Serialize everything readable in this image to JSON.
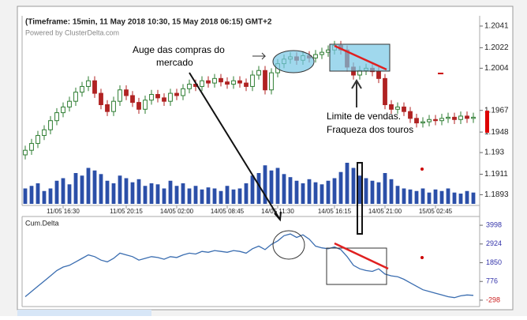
{
  "chart_data": [
    {
      "type": "candlestick",
      "title": "(Timeframe: 15min, 11 May 2018 10:30, 15 May 2018 06:15) GMT+2",
      "subtitle": "Powered by ClusterDelta.com",
      "annotations": [
        "Auge das compras do",
        "mercado",
        "Limite de vendas.",
        "Fraqueza dos touros"
      ],
      "categories": [
        null,
        null,
        null,
        null,
        null,
        null,
        "11/05 16:30",
        null,
        null,
        null,
        null,
        null,
        null,
        null,
        null,
        null,
        "11/05 20:15",
        null,
        null,
        null,
        null,
        null,
        null,
        null,
        "14/05 02:00",
        null,
        null,
        null,
        null,
        null,
        null,
        null,
        "14/05 08:45",
        null,
        null,
        null,
        null,
        null,
        null,
        null,
        "14/05 11:30",
        null,
        null,
        null,
        null,
        null,
        null,
        null,
        null,
        "14/05 16:15",
        null,
        null,
        null,
        null,
        null,
        null,
        null,
        "14/05 21:00",
        null,
        null,
        null,
        null,
        null,
        null,
        null,
        "15/05 02:45",
        null,
        null,
        null,
        null,
        null,
        null
      ],
      "open": [
        1.1928,
        1.1932,
        1.1938,
        1.1945,
        1.195,
        1.1958,
        1.1965,
        1.197,
        1.1975,
        1.1983,
        1.1988,
        1.1993,
        1.1982,
        1.1972,
        1.1966,
        1.1975,
        1.1985,
        1.198,
        1.1974,
        1.1968,
        1.1976,
        1.1981,
        1.1978,
        1.1975,
        1.1982,
        1.198,
        1.1986,
        1.199,
        1.1988,
        1.1993,
        1.1991,
        1.1995,
        1.1992,
        1.199,
        1.1993,
        1.1991,
        1.1988,
        1.1998,
        1.2002,
        1.1985,
        1.2,
        1.2008,
        1.2012,
        1.2014,
        1.2011,
        1.2015,
        1.2013,
        1.2016,
        1.2018,
        1.202,
        1.2024,
        1.202,
        1.2005,
        1.1998,
        1.2002,
        1.2004,
        1.2001,
        1.1995,
        1.1972,
        1.1968,
        1.197,
        1.1966,
        1.196,
        1.1956,
        1.1957,
        1.1959,
        1.1958,
        1.196,
        1.1961,
        1.1959,
        1.1962,
        1.196
      ],
      "high": [
        1.1936,
        1.1942,
        1.1949,
        1.1954,
        1.1962,
        1.1969,
        1.1974,
        1.1979,
        1.1987,
        1.1992,
        1.1997,
        1.1997,
        1.1986,
        1.1976,
        1.1979,
        1.1989,
        1.1989,
        1.1984,
        1.1978,
        1.198,
        1.1985,
        1.1985,
        1.1982,
        1.1986,
        1.1986,
        1.199,
        1.1994,
        1.1994,
        1.1997,
        1.1997,
        1.1999,
        1.1999,
        1.1996,
        1.1997,
        1.1997,
        1.1995,
        1.2002,
        1.2006,
        1.2006,
        1.2004,
        1.2012,
        1.2016,
        1.2018,
        1.2018,
        1.2019,
        1.2019,
        1.202,
        1.2022,
        1.2024,
        1.2028,
        1.2028,
        1.2024,
        1.2009,
        1.2006,
        1.2008,
        1.2008,
        1.2005,
        1.1999,
        1.1976,
        1.1974,
        1.1974,
        1.197,
        1.1964,
        1.1961,
        1.1963,
        1.1963,
        1.1964,
        1.1965,
        1.1965,
        1.1966,
        1.1966,
        1.1965
      ],
      "low": [
        1.1924,
        1.1928,
        1.1934,
        1.1941,
        1.1946,
        1.1954,
        1.1961,
        1.1966,
        1.1971,
        1.1979,
        1.1984,
        1.1978,
        1.1968,
        1.1962,
        1.1962,
        1.1971,
        1.1976,
        1.197,
        1.1964,
        1.1964,
        1.1972,
        1.1974,
        1.1971,
        1.1971,
        1.1976,
        1.1976,
        1.1982,
        1.1984,
        1.1984,
        1.1987,
        1.1987,
        1.1988,
        1.1986,
        1.1986,
        1.1987,
        1.1984,
        1.1984,
        1.1994,
        1.1981,
        1.1981,
        1.1996,
        1.2004,
        1.2008,
        1.2007,
        1.2007,
        1.2009,
        1.2009,
        1.2012,
        1.2014,
        1.2016,
        1.2016,
        1.2001,
        1.1994,
        1.1994,
        1.1998,
        1.1997,
        1.1991,
        1.1968,
        1.1964,
        1.1964,
        1.1962,
        1.1956,
        1.1952,
        1.1952,
        1.1953,
        1.1954,
        1.1954,
        1.1956,
        1.1955,
        1.1955,
        1.1956,
        1.1956
      ],
      "close": [
        1.1932,
        1.1938,
        1.1945,
        1.195,
        1.1958,
        1.1965,
        1.197,
        1.1975,
        1.1983,
        1.1988,
        1.1993,
        1.1982,
        1.1972,
        1.1966,
        1.1975,
        1.1985,
        1.198,
        1.1974,
        1.1968,
        1.1976,
        1.1981,
        1.1978,
        1.1975,
        1.1982,
        1.198,
        1.1986,
        1.199,
        1.1988,
        1.1993,
        1.1991,
        1.1995,
        1.1992,
        1.199,
        1.1993,
        1.1991,
        1.1988,
        1.1998,
        1.2002,
        1.1985,
        1.2,
        1.2008,
        1.2012,
        1.2014,
        1.2011,
        1.2015,
        1.2013,
        1.2016,
        1.2018,
        1.202,
        1.2024,
        1.202,
        1.2005,
        1.1998,
        1.2002,
        1.2004,
        1.2001,
        1.1995,
        1.1972,
        1.1968,
        1.197,
        1.1966,
        1.196,
        1.1956,
        1.1957,
        1.1959,
        1.1958,
        1.196,
        1.1961,
        1.1959,
        1.1962,
        1.196,
        1.1961
      ],
      "volume": [
        30,
        35,
        40,
        25,
        30,
        45,
        50,
        38,
        60,
        55,
        70,
        65,
        58,
        45,
        40,
        55,
        50,
        42,
        48,
        35,
        40,
        38,
        30,
        45,
        35,
        40,
        30,
        35,
        28,
        32,
        30,
        25,
        35,
        28,
        30,
        40,
        55,
        60,
        75,
        65,
        70,
        58,
        52,
        45,
        40,
        48,
        42,
        38,
        45,
        50,
        62,
        80,
        70,
        55,
        50,
        45,
        42,
        60,
        48,
        35,
        30,
        28,
        25,
        30,
        22,
        28,
        25,
        30,
        22,
        20,
        25,
        22
      ],
      "up_color": "#2e7d32",
      "down_color": "#b02222",
      "volume_color": "#2b4fa8",
      "ylim": [
        1.1885,
        1.205
      ],
      "yticks": [
        1.2041,
        1.2022,
        1.2004,
        1.1967,
        1.1948,
        1.193,
        1.1911,
        1.1893
      ]
    },
    {
      "type": "line",
      "title": "Cum.Delta",
      "values": [
        -100,
        200,
        500,
        800,
        1100,
        1400,
        1600,
        1700,
        1900,
        2100,
        2300,
        2200,
        2000,
        1900,
        2100,
        2400,
        2300,
        2200,
        2000,
        2100,
        2200,
        2150,
        2050,
        2200,
        2150,
        2300,
        2400,
        2350,
        2500,
        2450,
        2550,
        2500,
        2450,
        2550,
        2500,
        2400,
        2650,
        2800,
        2600,
        2900,
        3100,
        3400,
        3500,
        3300,
        3450,
        3200,
        2800,
        2700,
        2650,
        2750,
        2600,
        2200,
        1700,
        1500,
        1400,
        1350,
        1500,
        1200,
        1100,
        1050,
        900,
        700,
        500,
        300,
        200,
        100,
        0,
        -100,
        -150,
        -50,
        0,
        -20
      ],
      "color": "#3a6db0",
      "tick_color": "#3333aa",
      "negative_tick_color": "#cc2222",
      "ylim": [
        -664,
        4455
      ],
      "yticks": [
        3998,
        2924,
        1850,
        776,
        -298
      ]
    }
  ]
}
